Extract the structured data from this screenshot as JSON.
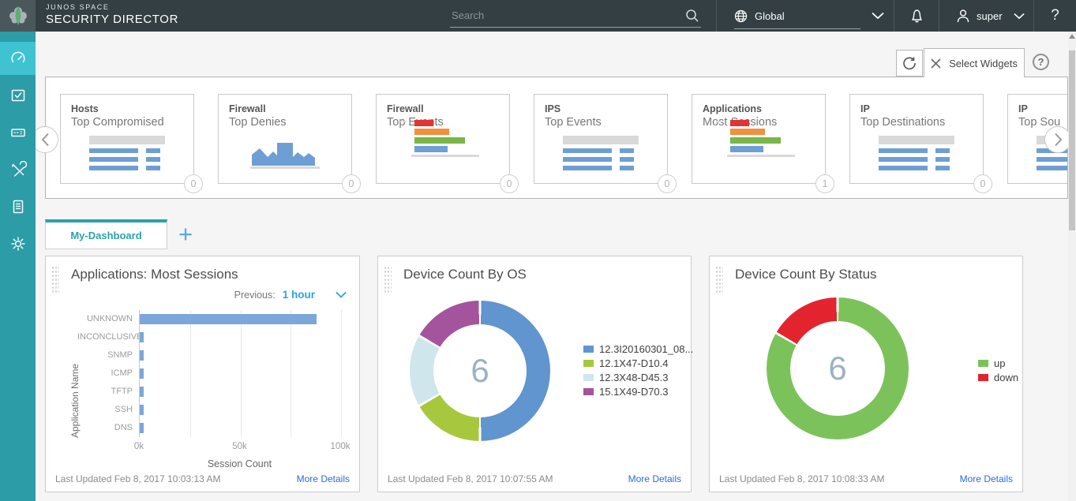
{
  "header": {
    "brand_line1": "JUNOS SPACE",
    "brand_line2": "SECURITY DIRECTOR",
    "search_placeholder": "Search",
    "domain_label": "Global",
    "user_name": "super",
    "help_label": "?",
    "icons": [
      "juniper-logo",
      "search-icon",
      "globe-icon",
      "chevron-down-icon",
      "bell-icon",
      "user-icon",
      "help-icon"
    ]
  },
  "sidebar": {
    "items": [
      {
        "icon": "dashboard-icon",
        "active": true
      },
      {
        "icon": "monitor-icon",
        "active": false
      },
      {
        "icon": "devices-icon",
        "active": false
      },
      {
        "icon": "configure-icon",
        "active": false
      },
      {
        "icon": "reports-icon",
        "active": false
      },
      {
        "icon": "administration-icon",
        "active": false
      }
    ]
  },
  "toolbar": {
    "refresh_icon": "refresh-icon",
    "select_widgets_label": "Select Widgets",
    "close_icon": "close-icon",
    "help_icon": "question-circle-icon"
  },
  "carousel": {
    "widgets": [
      {
        "category": "Hosts",
        "title": "Top Compromised",
        "thumb": "table-icon",
        "badge": "0"
      },
      {
        "category": "Firewall",
        "title": "Top Denies",
        "thumb": "area-chart-icon",
        "badge": "0"
      },
      {
        "category": "Firewall",
        "title": "Top Events",
        "thumb": "hbar-chart-icon",
        "badge": "0"
      },
      {
        "category": "IPS",
        "title": "Top Events",
        "thumb": "table-icon",
        "badge": "0"
      },
      {
        "category": "Applications",
        "title": "Most Sessions",
        "thumb": "hbar-chart-icon",
        "badge": "1"
      },
      {
        "category": "IP",
        "title": "Top Destinations",
        "thumb": "table-icon",
        "badge": "0"
      },
      {
        "category": "IP",
        "title": "Top Sou",
        "thumb": "table-icon",
        "badge": null
      }
    ],
    "thumb_colors": {
      "blue": "#6e9fd4",
      "red": "#e03535",
      "orange": "#ef9140",
      "green": "#7ab648",
      "gray": "#d9d9d9"
    }
  },
  "tabs": {
    "active_label": "My-Dashboard",
    "add_label": "+"
  },
  "cards": [
    {
      "title": "Applications: Most Sessions",
      "previous_label": "Previous:",
      "period": "1 hour",
      "last_updated": "Last Updated Feb 8, 2017 10:03:13 AM",
      "more_details": "More Details"
    },
    {
      "title": "Device Count By OS",
      "last_updated": "Last Updated Feb 8, 2017 10:07:55 AM",
      "more_details": "More Details"
    },
    {
      "title": "Device Count By Status",
      "last_updated": "Last Updated Feb 8, 2017 10:08:33 AM",
      "more_details": "More Details"
    }
  ],
  "chart_data": [
    {
      "type": "bar",
      "orientation": "horizontal",
      "title": "Applications: Most Sessions",
      "categories": [
        "UNKNOWN",
        "INCONCLUSIVE",
        "SNMP",
        "ICMP",
        "TFTP",
        "SSH",
        "DNS"
      ],
      "values": [
        88000,
        2000,
        2000,
        2000,
        2000,
        2000,
        2000
      ],
      "xlabel": "Session Count",
      "ylabel": "Application Name",
      "xlim": [
        0,
        100000
      ],
      "xticks": [
        {
          "value": 0,
          "label": "0k"
        },
        {
          "value": 50000,
          "label": "50k"
        },
        {
          "value": 100000,
          "label": "100k"
        }
      ],
      "grid": true,
      "bar_color": "#7ba7da"
    },
    {
      "type": "pie",
      "subtype": "donut",
      "title": "Device Count By OS",
      "center_label": "6",
      "legend_position": "right",
      "slices": [
        {
          "label": "12.3I20160301_08...",
          "value": 3,
          "color": "#6095cf"
        },
        {
          "label": "12.1X47-D10.4",
          "value": 1,
          "color": "#a7c83e"
        },
        {
          "label": "12.3X48-D45.3",
          "value": 1,
          "color": "#cfe6ed"
        },
        {
          "label": "15.1X49-D70.3",
          "value": 1,
          "color": "#a4549c"
        }
      ]
    },
    {
      "type": "pie",
      "subtype": "donut",
      "title": "Device Count By Status",
      "center_label": "6",
      "legend_position": "right",
      "slices": [
        {
          "label": "up",
          "value": 5,
          "color": "#7cc25b"
        },
        {
          "label": "down",
          "value": 1,
          "color": "#e3242e"
        }
      ]
    }
  ],
  "colors": {
    "header_bg": "#333f42",
    "sidebar_bg": "#2c9ca7",
    "sidebar_active_bg": "#3fc3d0",
    "tab_accent": "#2aa2ae",
    "link_blue": "#2d6bd9",
    "period_blue": "#29a3e8",
    "bar_blue": "#7ba7da"
  }
}
